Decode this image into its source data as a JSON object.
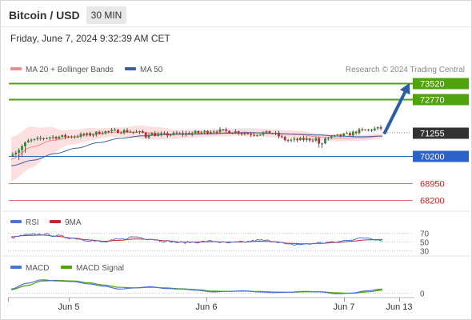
{
  "header": {
    "title": "Bitcoin / USD",
    "interval": "30 MIN",
    "timestamp": "Friday, June 7, 2024 9:32:39 AM CET"
  },
  "legend": {
    "ma20": {
      "label": "MA 20 + Bollinger Bands",
      "color": "#f28c8c"
    },
    "ma50": {
      "label": "MA 50",
      "color": "#3a5ea8"
    },
    "credit": "Research © 2024 Trading Central"
  },
  "colors": {
    "up": "#2d8a2d",
    "down": "#c62828",
    "wick": "#333333",
    "resistance": "#4ea40a",
    "pivot": "#2a62c8",
    "support": "#f26b6b",
    "current_badge": "#333333",
    "arrow": "#2c5ea8",
    "bollinger_fill": "#fbd9d9",
    "rsi": "#4a73d6",
    "rsi_ma": "#c62828",
    "macd": "#4a73d6",
    "macd_signal": "#4ea40a"
  },
  "chart_data": [
    {
      "type": "candlestick",
      "title": "Bitcoin / USD",
      "interval": "30 MIN",
      "x_ticks": [
        "Jun 5",
        "Jun 6",
        "Jun 7",
        "Jun 13"
      ],
      "ylim": [
        67750,
        73800
      ],
      "current_price": 71255,
      "levels": [
        {
          "value": 73520,
          "kind": "resistance"
        },
        {
          "value": 72770,
          "kind": "resistance"
        },
        {
          "value": 71255,
          "kind": "current"
        },
        {
          "value": 70200,
          "kind": "pivot"
        },
        {
          "value": 68950,
          "kind": "support"
        },
        {
          "value": 68200,
          "kind": "support"
        }
      ],
      "target_arrow": {
        "from": 71255,
        "to": 73520
      },
      "price_anchors": [
        70350,
        70900,
        71050,
        71080,
        71150,
        71300,
        71330,
        71250,
        71150,
        71200,
        71250,
        71350,
        71300,
        71200,
        71250,
        70900,
        70950,
        71000,
        71150,
        71350,
        71450
      ],
      "ma20_anchors": [
        70050,
        70600,
        70900,
        71060,
        71200,
        71280,
        71290,
        71230,
        71180,
        71210,
        71240,
        71280,
        71260,
        71200,
        71160,
        71050,
        71000,
        71020,
        71100
      ],
      "ma50_anchors": [
        69750,
        70000,
        70300,
        70550,
        70800,
        71000,
        71110,
        71170,
        71180,
        71200,
        71230,
        71250,
        71220,
        71190,
        71150,
        71100,
        71070,
        71100
      ],
      "bollinger_halfwidth": [
        1000,
        950,
        650,
        350,
        300,
        220,
        210,
        300,
        280,
        200,
        180,
        160,
        170,
        190,
        180,
        180,
        170,
        160,
        140,
        130,
        120
      ]
    },
    {
      "type": "line",
      "title": "RSI",
      "series": [
        {
          "name": "RSI"
        },
        {
          "name": "9MA"
        }
      ],
      "y_ticks": [
        70,
        50,
        30
      ],
      "ylim": [
        20,
        80
      ],
      "rsi_anchors": [
        58,
        64,
        66,
        62,
        57,
        52,
        48,
        54,
        60,
        55,
        50,
        47,
        48,
        50,
        46,
        48,
        52,
        50,
        42,
        43,
        46,
        48,
        54,
        58,
        52
      ],
      "ma_anchors": [
        60,
        63,
        64,
        61,
        57,
        53,
        50,
        52,
        55,
        54,
        51,
        48,
        48,
        49,
        48,
        48,
        50,
        49,
        45,
        44,
        45,
        47,
        50,
        53,
        54
      ]
    },
    {
      "type": "line",
      "title": "MACD",
      "series": [
        {
          "name": "MACD"
        },
        {
          "name": "MACD Signal"
        }
      ],
      "y_ticks": [
        0
      ],
      "ylim": [
        -60,
        300
      ],
      "macd_anchors": [
        60,
        160,
        220,
        200,
        190,
        150,
        110,
        60,
        80,
        100,
        70,
        60,
        40,
        10,
        20,
        30,
        10,
        0,
        5,
        20,
        10,
        -20,
        -10,
        30,
        60
      ],
      "signal_anchors": [
        50,
        120,
        200,
        210,
        200,
        170,
        130,
        90,
        80,
        90,
        80,
        65,
        50,
        25,
        20,
        25,
        18,
        8,
        5,
        12,
        12,
        -5,
        -12,
        10,
        40
      ]
    }
  ]
}
